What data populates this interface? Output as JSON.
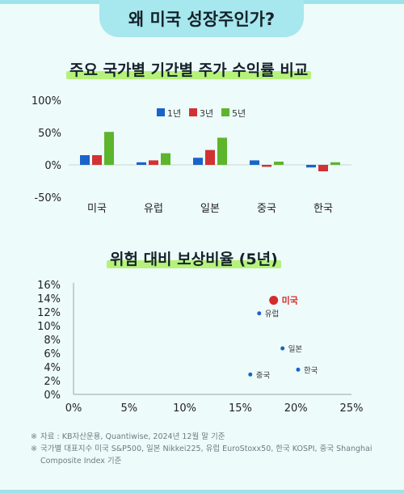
{
  "header": {
    "title": "왜 미국 성장주인가?"
  },
  "colors": {
    "y1": "#1a63c9",
    "y3": "#d23232",
    "y5": "#5db52c",
    "scatter_us": "#d62b2b",
    "scatter_other": "#1a63c9",
    "highlight": "#b6f27a",
    "accent": "#a7e7ee"
  },
  "chart_data": [
    {
      "type": "bar",
      "title": "주요 국가별 기간별 주가 수익률 비교",
      "categories": [
        "미국",
        "유럽",
        "일본",
        "중국",
        "한국"
      ],
      "series": [
        {
          "name": "1년",
          "values": [
            15,
            4,
            11,
            7,
            -4
          ]
        },
        {
          "name": "3년",
          "values": [
            15,
            7,
            23,
            -3,
            -10
          ]
        },
        {
          "name": "5년",
          "values": [
            51,
            18,
            42,
            5,
            4
          ]
        }
      ],
      "yticks": [
        "100%",
        "50%",
        "0%",
        "-50%"
      ],
      "ylim": [
        -50,
        100
      ],
      "legend": "top-center",
      "grid": false
    },
    {
      "type": "scatter",
      "title": "위험 대비 보상비율 (5년)",
      "points": [
        {
          "label": "미국",
          "x": 18.0,
          "y": 13.7,
          "highlight": true
        },
        {
          "label": "유럽",
          "x": 16.7,
          "y": 11.8
        },
        {
          "label": "일본",
          "x": 18.8,
          "y": 6.7
        },
        {
          "label": "한국",
          "x": 20.2,
          "y": 3.6
        },
        {
          "label": "중국",
          "x": 15.9,
          "y": 2.9
        }
      ],
      "xticks": [
        "0%",
        "5%",
        "10%",
        "15%",
        "20%",
        "25%"
      ],
      "yticks": [
        "16%",
        "14%",
        "12%",
        "10%",
        "8%",
        "6%",
        "4%",
        "2%",
        "0%"
      ],
      "xlim": [
        0,
        25
      ],
      "ylim": [
        0,
        16
      ],
      "grid": false
    }
  ],
  "notes": {
    "mark": "※",
    "line1": "자료 : KB자산운용, Quantiwise, 2024년 12월 말 기준",
    "line2": "국가별 대표지수 미국 S&P500, 일본 Nikkei225, 유럽 EuroStoxx50, 한국 KOSPI, 중국 Shanghai Composite Index 기준"
  }
}
